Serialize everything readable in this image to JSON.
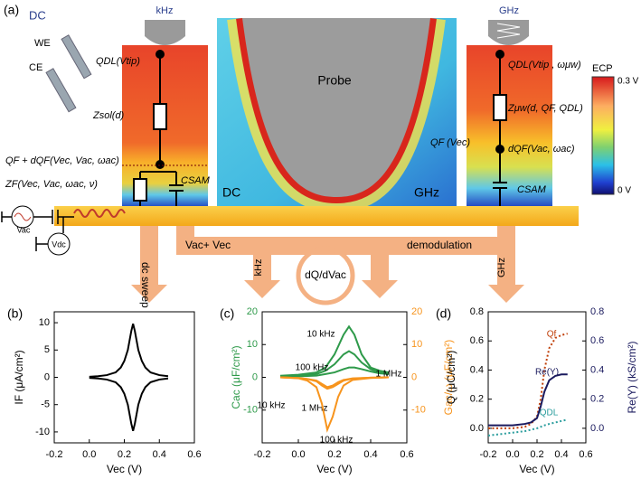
{
  "panel_a": {
    "label": "(a)",
    "dc": "DC",
    "we": "WE",
    "ce": "CE",
    "khz_probe": "kHz",
    "ghz_probe": "GHz",
    "probe": "Probe",
    "map_dc": "DC",
    "map_ghz": "GHz",
    "ecp": "ECP",
    "ecp_top": "0.3 V",
    "ecp_bottom": "0 V",
    "qdl_left": "QDL(Vtip)",
    "zsol": "Zsol(d)",
    "qf_left": "QF + dQF(Vec, Vac, ωac)",
    "zf": "ZF(Vec, Vac, ωac, ν)",
    "csam_left": "CSAM",
    "qdl_right": "QDL(Vtip , ωμw)",
    "zmw": "Zμw(d, QF, QDL)",
    "qf_right": "QF (Vec)",
    "dqf_right": "dQF(Vac, ωac)",
    "csam_right": "CSAM",
    "vac": "Vac",
    "vdc": "Vdc",
    "vac_vec": "Vac+ Vec",
    "demodulation": "demodulation",
    "dc_sweep": "dc sweep",
    "khz_arrow": "kHz",
    "dqdv": "dQ/dVac",
    "ghz_arrow": "GHz"
  },
  "chart_data": [
    {
      "type": "line",
      "label": "(b)",
      "x_label": "Vec (V)",
      "y_label": "IF (μA/cm²)",
      "xlim": [
        -0.2,
        0.6
      ],
      "xticks": [
        -0.2,
        {
          "value": 0,
          "label": "0.0"
        },
        0.2,
        0.4,
        0.6
      ],
      "ylim": [
        -12,
        12
      ],
      "yticks": [
        -10,
        -5,
        0,
        5,
        10
      ],
      "series": [
        {
          "color": "#000000",
          "x": [
            0,
            0.05,
            0.1,
            0.15,
            0.18,
            0.2,
            0.22,
            0.24,
            0.25,
            0.26,
            0.28,
            0.3,
            0.32,
            0.35,
            0.4,
            0.45
          ],
          "values": [
            0.1,
            0.2,
            0.4,
            0.9,
            1.8,
            3,
            5,
            8.5,
            9.8,
            8.5,
            5,
            3,
            1.8,
            0.9,
            0.4,
            0.2
          ]
        },
        {
          "color": "#000000",
          "x": [
            0,
            0.05,
            0.1,
            0.15,
            0.18,
            0.2,
            0.22,
            0.24,
            0.25,
            0.26,
            0.28,
            0.3,
            0.32,
            0.35,
            0.4,
            0.45
          ],
          "values": [
            -0.1,
            -0.2,
            -0.4,
            -0.9,
            -1.8,
            -3,
            -5,
            -8.5,
            -9.8,
            -8.5,
            -5,
            -3,
            -1.8,
            -0.9,
            -0.4,
            -0.2
          ]
        }
      ]
    },
    {
      "type": "line",
      "label": "(c)",
      "x_label": "Vec (V)",
      "y_label": "Cac (μF/cm²)",
      "y2_label": "Gac/ω (μF/cm²)",
      "xlim": [
        -0.2,
        0.6
      ],
      "xticks": [
        -0.2,
        {
          "value": 0,
          "label": "0.0"
        },
        0.2,
        0.4,
        0.6
      ],
      "ylim": [
        -20,
        20
      ],
      "yticks": [
        -10,
        0,
        10,
        20
      ],
      "y2lim": [
        -20,
        20
      ],
      "y2ticks": [
        -10,
        0,
        10,
        20
      ],
      "series": [
        {
          "name": "10 kHz",
          "color": "#2e9a4a",
          "x": [
            -0.1,
            0,
            0.1,
            0.15,
            0.2,
            0.25,
            0.28,
            0.31,
            0.35,
            0.4,
            0.45,
            0.5
          ],
          "values": [
            0.5,
            0.8,
            1.5,
            3,
            7,
            13,
            15.5,
            13,
            7,
            3,
            2,
            1.5
          ]
        },
        {
          "name": "100 kHz",
          "color": "#2e9a4a",
          "x": [
            -0.1,
            0,
            0.1,
            0.15,
            0.2,
            0.25,
            0.28,
            0.31,
            0.35,
            0.4,
            0.45,
            0.5
          ],
          "values": [
            0.3,
            0.5,
            1,
            2,
            4,
            7,
            8,
            7,
            4.5,
            2.5,
            1.5,
            1
          ]
        },
        {
          "name": "1 MHz",
          "color": "#2e9a4a",
          "x": [
            -0.1,
            0,
            0.1,
            0.15,
            0.2,
            0.25,
            0.28,
            0.31,
            0.35,
            0.4,
            0.45,
            0.5
          ],
          "values": [
            0.2,
            0.3,
            0.5,
            1,
            1.5,
            2.5,
            3,
            3,
            2.5,
            1.8,
            1.2,
            1
          ]
        },
        {
          "name": "10 kHz",
          "color": "#f7941d",
          "axis": "y2",
          "x": [
            -0.1,
            0,
            0.05,
            0.1,
            0.13,
            0.16,
            0.19,
            0.22,
            0.25,
            0.3,
            0.4,
            0.5
          ],
          "values": [
            0,
            -0.2,
            -0.5,
            -1.2,
            -2.5,
            -3.5,
            -3,
            -2,
            -1,
            -0.4,
            -0.1,
            0
          ]
        },
        {
          "name": "1 MHz",
          "color": "#f7941d",
          "axis": "y2",
          "x": [
            -0.1,
            0,
            0.05,
            0.1,
            0.13,
            0.16,
            0.19,
            0.22,
            0.25,
            0.3,
            0.4,
            0.5
          ],
          "values": [
            0,
            -0.2,
            -0.5,
            -1,
            -2,
            -3,
            -2.5,
            -1.5,
            -0.8,
            -0.3,
            -0.1,
            0
          ]
        },
        {
          "name": "100 kHz",
          "color": "#f7941d",
          "axis": "y2",
          "x": [
            -0.1,
            0,
            0.05,
            0.1,
            0.13,
            0.16,
            0.19,
            0.22,
            0.25,
            0.3,
            0.4,
            0.5
          ],
          "values": [
            0,
            -0.3,
            -1,
            -3,
            -8,
            -16,
            -12,
            -6,
            -2.5,
            -0.8,
            -0.2,
            0
          ]
        }
      ]
    },
    {
      "type": "line",
      "label": "(d)",
      "x_label": "Vec (V)",
      "y_label": "Q (μC/cm²)",
      "y2_label": "Re(Y) (kS/cm²)",
      "xlim": [
        -0.2,
        0.6
      ],
      "xticks": [
        -0.2,
        {
          "value": 0,
          "label": "0.0"
        },
        0.2,
        0.4,
        0.6
      ],
      "ylim": [
        -0.1,
        0.8
      ],
      "yticks": [
        {
          "value": 0,
          "label": "0.0"
        },
        0.2,
        0.4,
        0.6,
        0.8
      ],
      "y2lim": [
        -0.1,
        0.8
      ],
      "y2ticks": [
        {
          "value": 0,
          "label": "0.0"
        },
        0.2,
        0.4,
        0.6,
        0.8
      ],
      "series": [
        {
          "name": "Qf",
          "color": "#c0400a",
          "style": "dotted",
          "x": [
            -0.2,
            -0.1,
            0,
            0.1,
            0.15,
            0.2,
            0.23,
            0.26,
            0.3,
            0.35,
            0.4,
            0.45
          ],
          "values": [
            0,
            0,
            0,
            0.01,
            0.03,
            0.08,
            0.2,
            0.4,
            0.55,
            0.62,
            0.64,
            0.65
          ]
        },
        {
          "name": "Re(Y)",
          "color": "#1a1a5e",
          "axis": "y2",
          "x": [
            -0.2,
            -0.1,
            0,
            0.1,
            0.15,
            0.2,
            0.23,
            0.26,
            0.3,
            0.35,
            0.4,
            0.45
          ],
          "values": [
            0.02,
            0.02,
            0.02,
            0.03,
            0.04,
            0.07,
            0.15,
            0.25,
            0.33,
            0.36,
            0.37,
            0.37
          ]
        },
        {
          "name": "QDL",
          "color": "#2a9d9d",
          "style": "dotted",
          "x": [
            -0.2,
            -0.1,
            0,
            0.1,
            0.15,
            0.2,
            0.23,
            0.26,
            0.3,
            0.35,
            0.4,
            0.45
          ],
          "values": [
            -0.05,
            -0.04,
            -0.03,
            -0.02,
            -0.01,
            0,
            0.01,
            0.02,
            0.03,
            0.04,
            0.05,
            0.06
          ]
        }
      ]
    }
  ]
}
